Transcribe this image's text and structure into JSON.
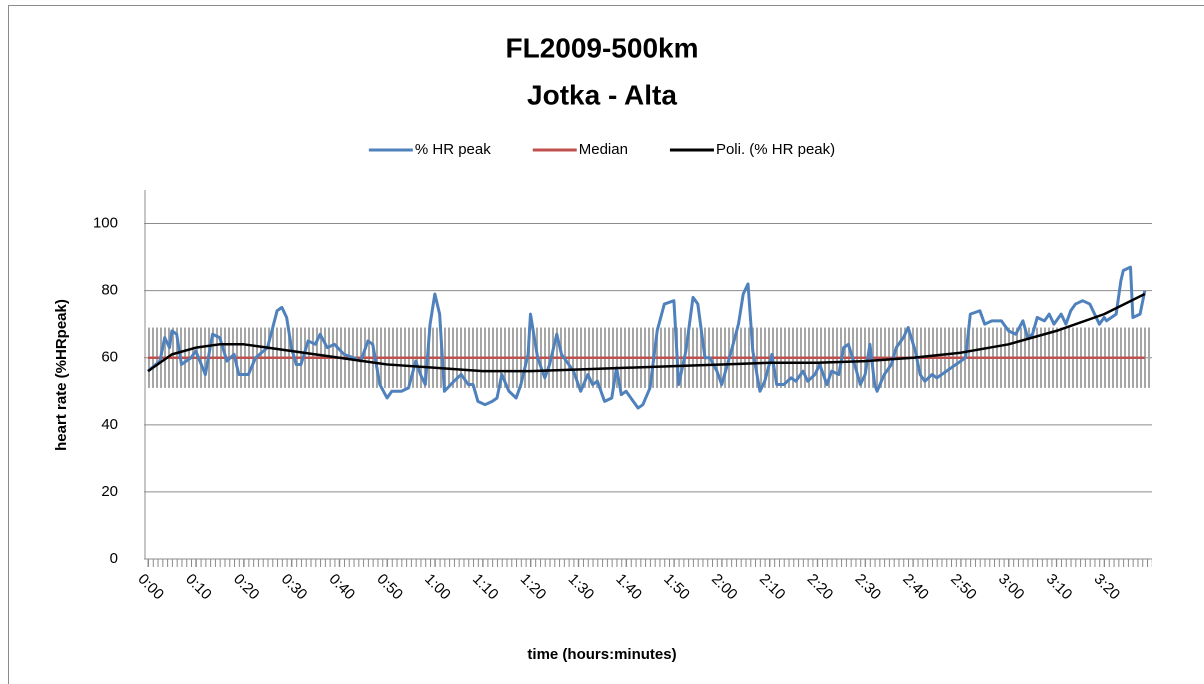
{
  "chart_data": {
    "type": "line",
    "title": "FL2009-500km",
    "subtitle": "Jotka - Alta",
    "x_label": "time (hours:minutes)",
    "y_label": "heart rate (%HRpeak)",
    "xlim": [
      0,
      210
    ],
    "ylim": [
      0,
      110
    ],
    "yticks": [
      0,
      20,
      40,
      60,
      80,
      100
    ],
    "xticks": [
      {
        "value": 0,
        "label": "0:00"
      },
      {
        "value": 10,
        "label": "0:10"
      },
      {
        "value": 20,
        "label": "0:20"
      },
      {
        "value": 30,
        "label": "0:30"
      },
      {
        "value": 40,
        "label": "0:40"
      },
      {
        "value": 50,
        "label": "0:50"
      },
      {
        "value": 60,
        "label": "1:00"
      },
      {
        "value": 70,
        "label": "1:10"
      },
      {
        "value": 80,
        "label": "1:20"
      },
      {
        "value": 90,
        "label": "1:30"
      },
      {
        "value": 100,
        "label": "1:40"
      },
      {
        "value": 110,
        "label": "1:50"
      },
      {
        "value": 120,
        "label": "2:00"
      },
      {
        "value": 130,
        "label": "2:10"
      },
      {
        "value": 140,
        "label": "2:20"
      },
      {
        "value": 150,
        "label": "2:30"
      },
      {
        "value": 160,
        "label": "2:40"
      },
      {
        "value": 170,
        "label": "2:50"
      },
      {
        "value": 180,
        "label": "3:00"
      },
      {
        "value": 190,
        "label": "3:10"
      },
      {
        "value": 200,
        "label": "3:20"
      }
    ],
    "grid": true,
    "legend_position": "top",
    "range_band": [
      51,
      69
    ],
    "band_color": "#a6a6a6",
    "series": [
      {
        "name": "% HR peak",
        "color": "#4f81bd",
        "x": [
          0,
          2.5,
          3.5,
          4.5,
          5,
          6,
          7,
          9,
          10,
          12,
          13.5,
          15,
          16.5,
          18,
          19,
          21,
          22.5,
          25,
          27,
          28,
          29,
          30,
          31,
          32,
          33.5,
          35,
          36,
          37.5,
          39,
          41,
          43,
          44.5,
          46,
          47,
          48.5,
          50,
          51,
          53,
          54.5,
          56,
          57,
          58,
          59,
          60,
          61,
          62,
          64,
          65.5,
          67,
          68,
          69,
          70.5,
          72,
          73,
          74,
          75.5,
          77,
          78,
          79.5,
          80,
          81.5,
          83,
          84,
          85.5,
          86.5,
          88,
          89,
          90.5,
          92,
          93,
          94,
          95.5,
          97,
          98,
          99,
          100,
          101.5,
          102.5,
          103.5,
          105,
          106.5,
          108,
          110,
          111,
          112.5,
          114,
          115,
          116.5,
          117.5,
          119,
          120,
          122,
          123.5,
          124.5,
          125.5,
          126.5,
          128,
          129,
          130.5,
          131.5,
          133,
          134.5,
          135.5,
          137,
          138,
          139.5,
          140.5,
          142,
          143,
          144.5,
          145.5,
          146.5,
          148,
          149,
          150,
          151,
          152,
          152.5,
          154,
          155.5,
          156.5,
          158,
          159,
          160.5,
          161.5,
          162.5,
          164,
          165,
          169,
          171,
          172,
          174,
          175,
          176.5,
          178.5,
          180,
          181.5,
          183,
          184,
          185,
          186,
          187.5,
          188.5,
          189.5,
          191,
          192,
          193,
          194,
          195.5,
          197,
          198,
          199,
          200,
          200.5,
          201.5,
          202.5,
          203.5,
          204,
          205.5,
          206,
          207.5,
          208.5
        ],
        "values": [
          56,
          59,
          66,
          63,
          68,
          67,
          58,
          60,
          62,
          55,
          67,
          66,
          59,
          61,
          55,
          55,
          60,
          63,
          74,
          75,
          72,
          63,
          58,
          58,
          65,
          64,
          67,
          63,
          64,
          61,
          60,
          59,
          65,
          64,
          52,
          48,
          50,
          50,
          51,
          59,
          55,
          52,
          70,
          79,
          73,
          50,
          53,
          55,
          52,
          52,
          47,
          46,
          47,
          48,
          55,
          50,
          48,
          52,
          61,
          73,
          60,
          54,
          58,
          67,
          61,
          58,
          56,
          50,
          55,
          52,
          53,
          47,
          48,
          57,
          49,
          50,
          47,
          45,
          46,
          51,
          68,
          76,
          77,
          52,
          62,
          78,
          76,
          60,
          60,
          56,
          52,
          62,
          70,
          79,
          82,
          62,
          50,
          53,
          61,
          52,
          52,
          54,
          53,
          56,
          53,
          55,
          58,
          52,
          56,
          55,
          63,
          64,
          57,
          52,
          55,
          64,
          52,
          50,
          55,
          58,
          63,
          66,
          69,
          62,
          55,
          53,
          55,
          54,
          58,
          60,
          73,
          74,
          70,
          71,
          71,
          68,
          67,
          71,
          66,
          67,
          72,
          71,
          73,
          70,
          73,
          70,
          74,
          76,
          77,
          76,
          73,
          70,
          72,
          71,
          72,
          73,
          83,
          86,
          87,
          72,
          73,
          80
        ]
      },
      {
        "name": "Median",
        "color": "#c0504d",
        "x": [
          0,
          208.5
        ],
        "values": [
          60,
          60
        ]
      },
      {
        "name": "Poli. (% HR peak)",
        "color": "#000000",
        "x": [
          0,
          5,
          10,
          15,
          20,
          25,
          30,
          40,
          50,
          60,
          70,
          80,
          90,
          100,
          110,
          120,
          130,
          140,
          150,
          160,
          170,
          180,
          190,
          200,
          208.5
        ],
        "values": [
          56,
          61,
          63,
          64,
          64,
          63,
          62,
          60,
          58,
          57,
          56,
          56,
          56.5,
          57,
          57.5,
          58,
          58.5,
          58.5,
          59,
          60,
          61.5,
          64,
          68,
          73,
          79
        ]
      }
    ]
  }
}
